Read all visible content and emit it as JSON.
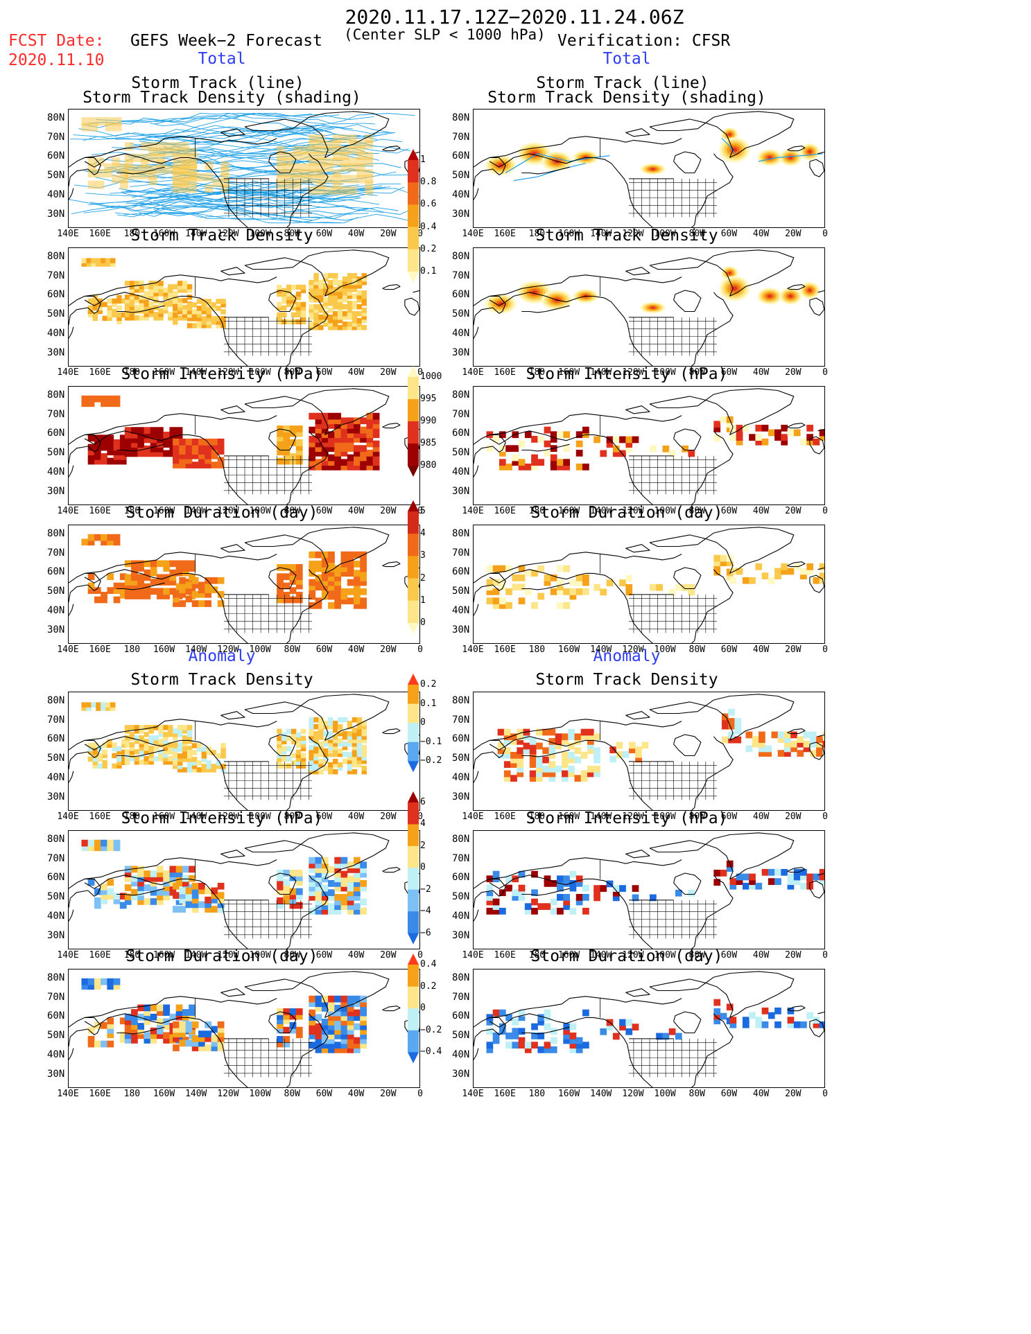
{
  "header": {
    "date_range": "2020.11.17.12Z−2020.11.24.06Z",
    "criterion": "(Center SLP < 1000 hPa)",
    "fcst_label": "FCST Date:",
    "fcst_date": "2020.11.10",
    "left_title": "GEFS Week−2 Forecast",
    "right_title": "Verification: CFSR",
    "total_label": "Total",
    "anomaly_label": "Anomaly"
  },
  "axes": {
    "lat_labels": [
      "80N",
      "70N",
      "60N",
      "50N",
      "40N",
      "30N"
    ],
    "lon_labels": [
      "140E",
      "160E",
      "180",
      "160W",
      "140W",
      "120W",
      "100W",
      "80W",
      "60W",
      "40W",
      "20W",
      "0"
    ]
  },
  "panels": {
    "track_line_1": "Storm Track (line)",
    "track_line_2": "Storm Track Density (shading)",
    "density": "Storm Track Density",
    "intensity": "Storm Intensity (hPa)",
    "duration": "Storm Duration (day)"
  },
  "colorbars": {
    "density_total": {
      "labels": [
        "1",
        "0.8",
        "0.6",
        "0.4",
        "0.2",
        "0.1"
      ],
      "colors": [
        "#b30000",
        "#e0301e",
        "#f06a1a",
        "#f5a21a",
        "#fac84a",
        "#fde58a",
        "#fff8c0"
      ]
    },
    "intensity_total": {
      "labels": [
        "1000",
        "995",
        "990",
        "985",
        "980"
      ],
      "colors": [
        "#fff8c0",
        "#fde58a",
        "#f5a21a",
        "#e0301e",
        "#9c0000",
        "#7a0000"
      ]
    },
    "duration_total": {
      "labels": [
        "5",
        "4",
        "3",
        "2",
        "1",
        "0"
      ],
      "colors": [
        "#9c0000",
        "#d42a1a",
        "#f06a1a",
        "#f5a21a",
        "#fac84a",
        "#fde58a",
        "#fff8c0"
      ]
    },
    "density_anom": {
      "labels": [
        "0.2",
        "0.1",
        "0",
        "−0.1",
        "−0.2"
      ],
      "colors": [
        "#ff3b1a",
        "#f5a21a",
        "#fde58a",
        "#bff0f5",
        "#5aa8f0",
        "#1c6ae0"
      ]
    },
    "intensity_anom": {
      "labels": [
        "6",
        "4",
        "2",
        "0",
        "−2",
        "−4",
        "−6"
      ],
      "colors": [
        "#9c0000",
        "#e0301e",
        "#f5a21a",
        "#fde58a",
        "#bff0f5",
        "#7cc0f5",
        "#3a8ae8",
        "#1c6ae0"
      ]
    },
    "duration_anom": {
      "labels": [
        "0.4",
        "0.2",
        "0",
        "−0.2",
        "−0.4"
      ],
      "colors": [
        "#ff3b1a",
        "#f5a21a",
        "#fde58a",
        "#bff0f5",
        "#5aa8f0",
        "#1c6ae0"
      ]
    }
  },
  "colors": {
    "track_line": "#1ea0e6",
    "forecast_note": "#ff2a2a",
    "section_label": "#2f3cf5"
  }
}
